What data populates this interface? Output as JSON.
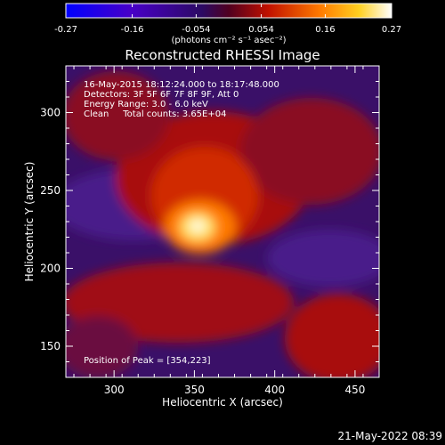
{
  "colorbar": {
    "min": -0.27,
    "max": 0.27,
    "ticks": [
      "-0.27",
      "-0.16",
      "-0.054",
      "0.054",
      "0.16",
      "0.27"
    ],
    "tick_values": [
      -0.27,
      -0.16,
      -0.054,
      0.054,
      0.16,
      0.27
    ],
    "unit_label": "(photons cm⁻² s⁻¹ asec⁻²)",
    "colors": [
      "#0000ff",
      "#5a00b0",
      "#3a0a70",
      "#9a0a3a",
      "#e02a00",
      "#ff8a00",
      "#ffe040",
      "#ffffff"
    ]
  },
  "chart_data": {
    "type": "heatmap",
    "title": "Reconstructed RHESSI Image",
    "xlabel": "Heliocentric X (arcsec)",
    "ylabel": "Heliocentric Y (arcsec)",
    "xlim": [
      270,
      465
    ],
    "ylim": [
      130,
      330
    ],
    "x_ticks": [
      300,
      350,
      400,
      450
    ],
    "y_ticks": [
      150,
      200,
      250,
      300
    ],
    "peak_position": [
      354,
      223
    ],
    "annotations": [
      "16-May-2015 18:12:24.000 to 18:17:48.000",
      "Detectors: 3F 5F 6F 7F 8F 9F, Att 0",
      "Energy Range: 3.0 - 6.0 keV",
      "Clean     Total counts: 3.65E+04"
    ],
    "footer_note": "Position of Peak = [354,223]"
  },
  "timestamp": "21-May-2022 08:39"
}
